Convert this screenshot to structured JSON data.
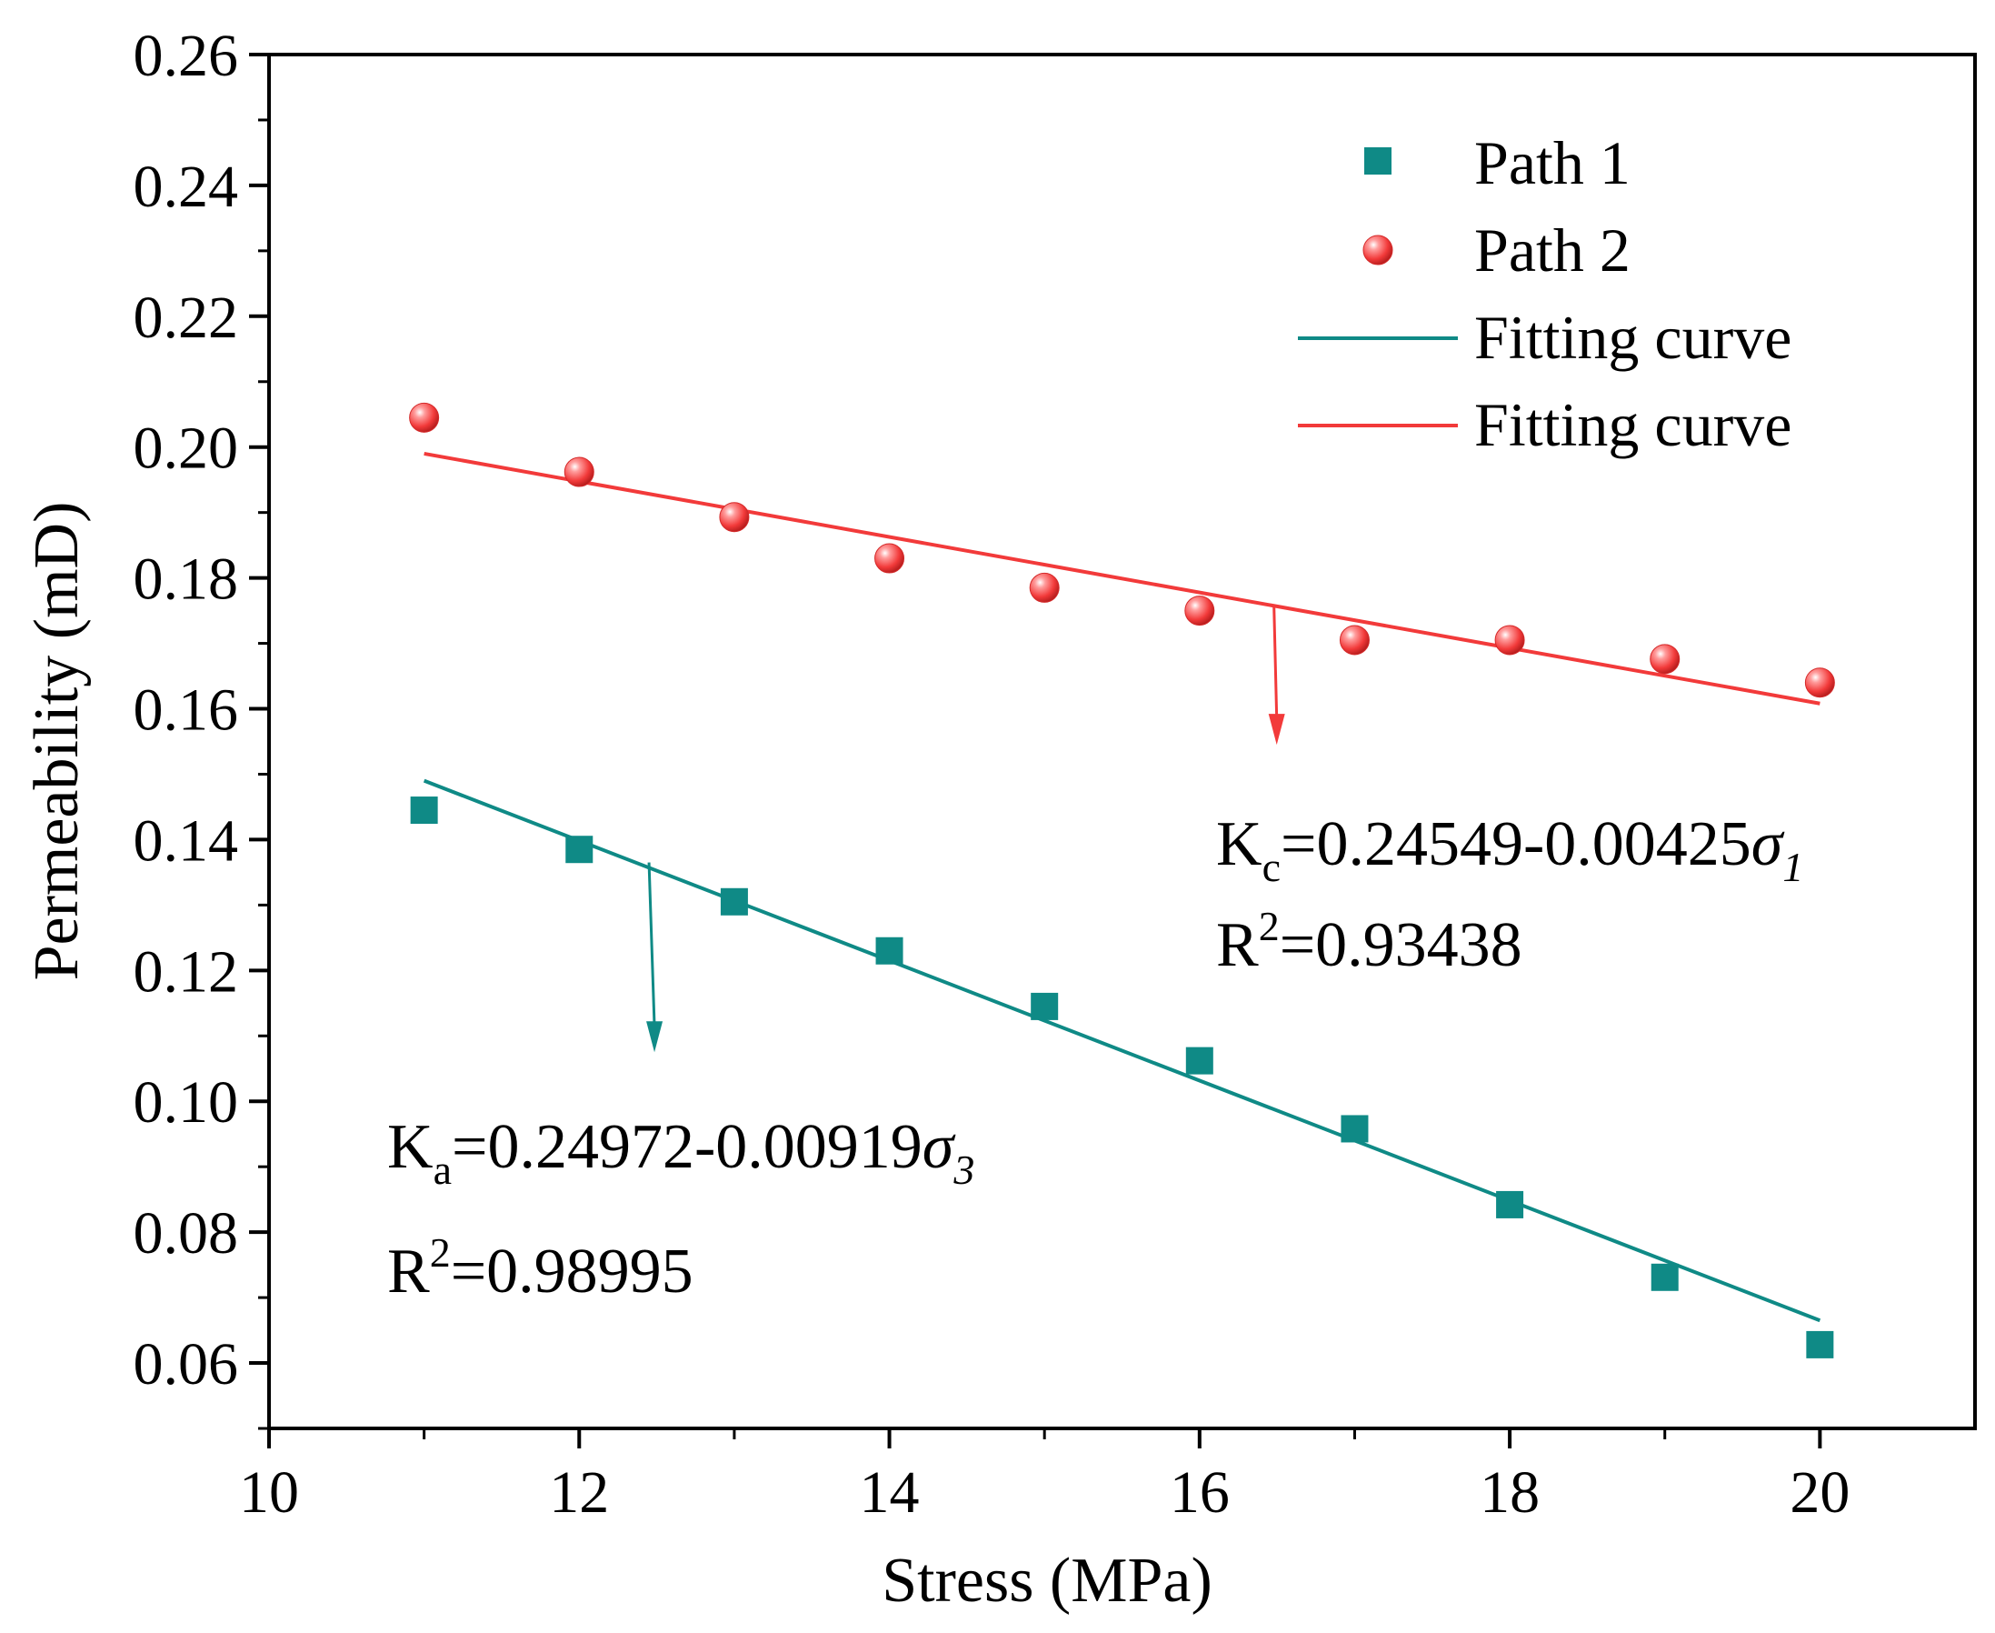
{
  "chart_data": {
    "type": "scatter",
    "title": "",
    "xlabel": "Stress (MPa)",
    "ylabel": "Permeability (mD)",
    "xlim": [
      10,
      21
    ],
    "ylim": [
      0.05,
      0.26
    ],
    "xticks": [
      "10",
      "12",
      "14",
      "16",
      "18",
      "20"
    ],
    "yticks": [
      "0.06",
      "0.08",
      "0.10",
      "0.12",
      "0.14",
      "0.16",
      "0.18",
      "0.20",
      "0.22",
      "0.24",
      "0.26"
    ],
    "x": [
      11,
      12,
      13,
      14,
      15,
      16,
      17,
      18,
      19,
      20
    ],
    "series": [
      {
        "name": "Path 1",
        "marker": "square",
        "color": "#0f8a86",
        "values": [
          0.1445,
          0.1385,
          0.1305,
          0.123,
          0.1145,
          0.1062,
          0.0958,
          0.0842,
          0.0731,
          0.0628
        ]
      },
      {
        "name": "Path 2",
        "marker": "sphere",
        "color": "#f23a3a",
        "values": [
          0.2045,
          0.1962,
          0.1893,
          0.183,
          0.1785,
          0.175,
          0.1705,
          0.1705,
          0.1676,
          0.164
        ]
      }
    ],
    "fits": [
      {
        "name": "Fitting curve",
        "color": "#0f8a86",
        "x_range": [
          11,
          20
        ],
        "y_range": [
          0.149,
          0.0665
        ]
      },
      {
        "name": "Fitting curve",
        "color": "#f23a3a",
        "x_range": [
          11,
          20
        ],
        "y_range": [
          0.199,
          0.1608
        ]
      }
    ],
    "annotations": [
      {
        "color": "#f23a3a",
        "eq_base": "K",
        "eq_sub": "c",
        "eq_body": "=0.24549-0.00425",
        "eq_var": "σ",
        "eq_var_sub": "1",
        "r2_base": "R",
        "r2_sup": "2",
        "r2_value": "=0.93438",
        "arrow_x": 16.48,
        "arrow_from": 0.1755,
        "arrow_to": 0.1545
      },
      {
        "color": "#0f8a86",
        "eq_base": "K",
        "eq_sub": "a",
        "eq_body": "=0.24972-0.00919",
        "eq_var": "σ",
        "eq_var_sub": "3",
        "r2_base": "R",
        "r2_sup": "2",
        "r2_value": "=0.98995",
        "arrow_x": 12.45,
        "arrow_from": 0.1365,
        "arrow_to": 0.1075
      }
    ],
    "legend": {
      "placement": "top-right",
      "entries": [
        "Path 1",
        "Path 2",
        "Fitting curve",
        "Fitting curve"
      ]
    }
  }
}
